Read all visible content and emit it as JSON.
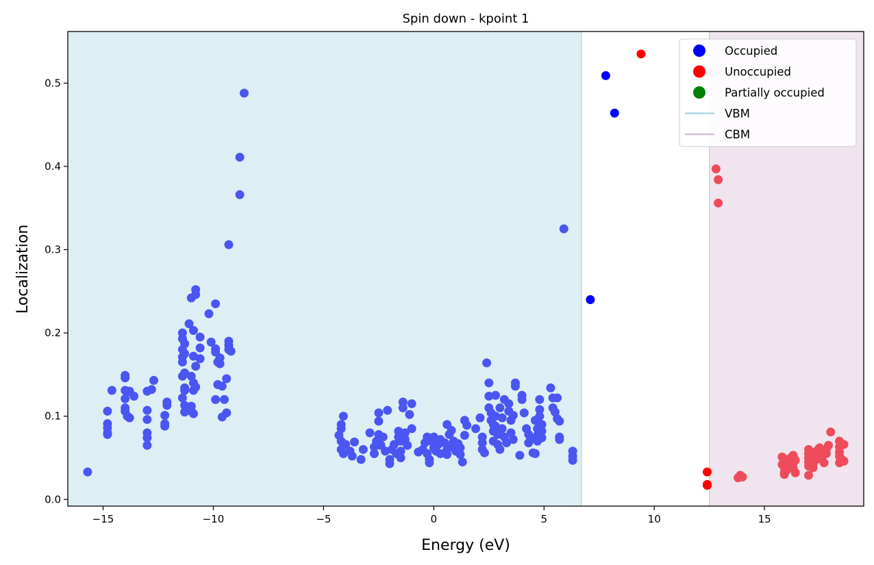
{
  "chart_data": {
    "type": "scatter",
    "title": "Spin down - kpoint 1",
    "xlabel": "Energy (eV)",
    "ylabel": "Localization",
    "xlim": [
      -16.6,
      19.5
    ],
    "ylim": [
      -0.008,
      0.562
    ],
    "x_ticks": [
      -15,
      -10,
      -5,
      0,
      5,
      10,
      15
    ],
    "x_tick_labels": [
      "−15",
      "−10",
      "−5",
      "0",
      "5",
      "10",
      "15"
    ],
    "y_ticks": [
      0.0,
      0.1,
      0.2,
      0.3,
      0.4,
      0.5
    ],
    "y_tick_labels": [
      "0.0",
      "0.1",
      "0.2",
      "0.3",
      "0.4",
      "0.5"
    ],
    "grid": false,
    "legend_position": "top-right",
    "regions": [
      {
        "name": "VBM",
        "from": -16.6,
        "to": 6.7,
        "fill": "#ddeef5",
        "edge": "#add8e6"
      },
      {
        "name": "CBM",
        "from": 12.5,
        "to": 19.5,
        "fill": "#f0e4ee",
        "edge": "#d8bfd8"
      }
    ],
    "legend": [
      {
        "label": "Occupied",
        "kind": "marker",
        "color": "#0000ff"
      },
      {
        "label": "Unoccupied",
        "kind": "marker",
        "color": "#ff0000"
      },
      {
        "label": "Partially occupied",
        "kind": "marker",
        "color": "#008000"
      },
      {
        "label": "VBM",
        "kind": "line",
        "color": "#add8e6"
      },
      {
        "label": "CBM",
        "kind": "line",
        "color": "#d8bfd8"
      }
    ],
    "series": [
      {
        "name": "Occupied",
        "color": "#4b55f2",
        "points": [
          [
            -15.7,
            0.033
          ],
          [
            -14.8,
            0.106
          ],
          [
            -14.8,
            0.091
          ],
          [
            -14.8,
            0.086
          ],
          [
            -14.8,
            0.08
          ],
          [
            -14.8,
            0.078
          ],
          [
            -14.6,
            0.131
          ],
          [
            -14.0,
            0.149
          ],
          [
            -14.0,
            0.146
          ],
          [
            -14.0,
            0.131
          ],
          [
            -13.9,
            0.129
          ],
          [
            -14.0,
            0.121
          ],
          [
            -14.0,
            0.11
          ],
          [
            -14.0,
            0.106
          ],
          [
            -13.9,
            0.1
          ],
          [
            -13.8,
            0.098
          ],
          [
            -13.8,
            0.13
          ],
          [
            -13.6,
            0.124
          ],
          [
            -13.0,
            0.13
          ],
          [
            -13.0,
            0.107
          ],
          [
            -13.0,
            0.096
          ],
          [
            -13.0,
            0.08
          ],
          [
            -13.0,
            0.074
          ],
          [
            -13.0,
            0.065
          ],
          [
            -12.8,
            0.132
          ],
          [
            -12.7,
            0.143
          ],
          [
            -12.1,
            0.117
          ],
          [
            -12.1,
            0.113
          ],
          [
            -12.2,
            0.101
          ],
          [
            -12.2,
            0.091
          ],
          [
            -12.2,
            0.088
          ],
          [
            -11.4,
            0.2
          ],
          [
            -11.4,
            0.193
          ],
          [
            -11.3,
            0.187
          ],
          [
            -11.4,
            0.18
          ],
          [
            -11.3,
            0.175
          ],
          [
            -11.4,
            0.171
          ],
          [
            -11.4,
            0.165
          ],
          [
            -11.3,
            0.152
          ],
          [
            -11.4,
            0.148
          ],
          [
            -11.3,
            0.134
          ],
          [
            -11.3,
            0.131
          ],
          [
            -11.4,
            0.122
          ],
          [
            -11.3,
            0.113
          ],
          [
            -11.3,
            0.105
          ],
          [
            -11.1,
            0.211
          ],
          [
            -11.0,
            0.242
          ],
          [
            -10.9,
            0.203
          ],
          [
            -10.9,
            0.172
          ],
          [
            -10.8,
            0.16
          ],
          [
            -11.0,
            0.148
          ],
          [
            -10.9,
            0.14
          ],
          [
            -10.8,
            0.135
          ],
          [
            -10.9,
            0.131
          ],
          [
            -11.0,
            0.112
          ],
          [
            -11.0,
            0.106
          ],
          [
            -10.9,
            0.103
          ],
          [
            -10.8,
            0.252
          ],
          [
            -10.8,
            0.246
          ],
          [
            -10.6,
            0.195
          ],
          [
            -10.6,
            0.182
          ],
          [
            -10.6,
            0.169
          ],
          [
            -10.2,
            0.223
          ],
          [
            -10.1,
            0.189
          ],
          [
            -9.9,
            0.235
          ],
          [
            -9.9,
            0.181
          ],
          [
            -9.9,
            0.177
          ],
          [
            -9.8,
            0.165
          ],
          [
            -9.7,
            0.163
          ],
          [
            -9.7,
            0.17
          ],
          [
            -9.8,
            0.138
          ],
          [
            -9.9,
            0.12
          ],
          [
            -9.6,
            0.136
          ],
          [
            -9.5,
            0.12
          ],
          [
            -9.6,
            0.099
          ],
          [
            -9.4,
            0.145
          ],
          [
            -9.4,
            0.104
          ],
          [
            -9.3,
            0.19
          ],
          [
            -9.3,
            0.185
          ],
          [
            -9.3,
            0.18
          ],
          [
            -9.2,
            0.178
          ],
          [
            -9.3,
            0.306
          ],
          [
            -8.8,
            0.366
          ],
          [
            -8.8,
            0.411
          ],
          [
            -8.6,
            0.488
          ],
          [
            -4.3,
            0.077
          ],
          [
            -4.2,
            0.09
          ],
          [
            -4.2,
            0.085
          ],
          [
            -4.2,
            0.07
          ],
          [
            -4.2,
            0.06
          ],
          [
            -4.1,
            0.1
          ],
          [
            -4.1,
            0.055
          ],
          [
            -4.0,
            0.066
          ],
          [
            -3.8,
            0.058
          ],
          [
            -3.7,
            0.052
          ],
          [
            -3.6,
            0.069
          ],
          [
            -3.3,
            0.048
          ],
          [
            -3.2,
            0.06
          ],
          [
            -2.9,
            0.08
          ],
          [
            -2.7,
            0.055
          ],
          [
            -2.7,
            0.063
          ],
          [
            -2.6,
            0.07
          ],
          [
            -2.5,
            0.104
          ],
          [
            -2.5,
            0.094
          ],
          [
            -2.5,
            0.078
          ],
          [
            -2.4,
            0.065
          ],
          [
            -2.3,
            0.075
          ],
          [
            -2.2,
            0.058
          ],
          [
            -2.1,
            0.107
          ],
          [
            -2.0,
            0.048
          ],
          [
            -2.0,
            0.043
          ],
          [
            -1.9,
            0.06
          ],
          [
            -1.8,
            0.066
          ],
          [
            -1.7,
            0.055
          ],
          [
            -1.6,
            0.082
          ],
          [
            -1.6,
            0.075
          ],
          [
            -1.5,
            0.07
          ],
          [
            -1.5,
            0.058
          ],
          [
            -1.5,
            0.05
          ],
          [
            -1.4,
            0.117
          ],
          [
            -1.4,
            0.11
          ],
          [
            -1.3,
            0.08
          ],
          [
            -1.3,
            0.072
          ],
          [
            -1.2,
            0.065
          ],
          [
            -1.1,
            0.102
          ],
          [
            -1.0,
            0.115
          ],
          [
            -1.0,
            0.085
          ],
          [
            -0.7,
            0.057
          ],
          [
            -0.5,
            0.06
          ],
          [
            -0.4,
            0.068
          ],
          [
            -0.3,
            0.075
          ],
          [
            -0.3,
            0.055
          ],
          [
            -0.2,
            0.048
          ],
          [
            -0.2,
            0.044
          ],
          [
            -0.1,
            0.07
          ],
          [
            0.0,
            0.075
          ],
          [
            0.0,
            0.062
          ],
          [
            0.1,
            0.058
          ],
          [
            0.2,
            0.066
          ],
          [
            0.3,
            0.072
          ],
          [
            0.3,
            0.055
          ],
          [
            0.5,
            0.068
          ],
          [
            0.6,
            0.09
          ],
          [
            0.6,
            0.06
          ],
          [
            0.6,
            0.054
          ],
          [
            0.7,
            0.078
          ],
          [
            0.8,
            0.083
          ],
          [
            0.8,
            0.064
          ],
          [
            0.9,
            0.07
          ],
          [
            1.0,
            0.058
          ],
          [
            1.1,
            0.067
          ],
          [
            1.2,
            0.062
          ],
          [
            1.2,
            0.054
          ],
          [
            1.3,
            0.045
          ],
          [
            1.4,
            0.077
          ],
          [
            1.4,
            0.095
          ],
          [
            1.5,
            0.089
          ],
          [
            1.9,
            0.085
          ],
          [
            2.1,
            0.098
          ],
          [
            2.2,
            0.075
          ],
          [
            2.2,
            0.068
          ],
          [
            2.2,
            0.06
          ],
          [
            2.3,
            0.056
          ],
          [
            2.4,
            0.164
          ],
          [
            2.5,
            0.14
          ],
          [
            2.5,
            0.124
          ],
          [
            2.5,
            0.11
          ],
          [
            2.6,
            0.104
          ],
          [
            2.6,
            0.095
          ],
          [
            2.7,
            0.09
          ],
          [
            2.7,
            0.082
          ],
          [
            2.7,
            0.07
          ],
          [
            2.8,
            0.125
          ],
          [
            2.8,
            0.1
          ],
          [
            2.8,
            0.088
          ],
          [
            2.9,
            0.078
          ],
          [
            2.9,
            0.066
          ],
          [
            3.0,
            0.06
          ],
          [
            3.0,
            0.11
          ],
          [
            3.1,
            0.098
          ],
          [
            3.1,
            0.085
          ],
          [
            3.2,
            0.12
          ],
          [
            3.2,
            0.075
          ],
          [
            3.3,
            0.068
          ],
          [
            3.4,
            0.115
          ],
          [
            3.4,
            0.106
          ],
          [
            3.5,
            0.095
          ],
          [
            3.5,
            0.08
          ],
          [
            3.6,
            0.072
          ],
          [
            3.6,
            0.101
          ],
          [
            3.7,
            0.14
          ],
          [
            3.7,
            0.136
          ],
          [
            3.9,
            0.053
          ],
          [
            4.0,
            0.125
          ],
          [
            4.0,
            0.12
          ],
          [
            4.1,
            0.104
          ],
          [
            4.2,
            0.085
          ],
          [
            4.3,
            0.078
          ],
          [
            4.3,
            0.068
          ],
          [
            4.4,
            0.073
          ],
          [
            4.5,
            0.056
          ],
          [
            4.6,
            0.055
          ],
          [
            4.6,
            0.095
          ],
          [
            4.7,
            0.085
          ],
          [
            4.7,
            0.077
          ],
          [
            4.7,
            0.07
          ],
          [
            4.8,
            0.12
          ],
          [
            4.8,
            0.108
          ],
          [
            4.8,
            0.1
          ],
          [
            4.9,
            0.09
          ],
          [
            4.9,
            0.082
          ],
          [
            4.9,
            0.074
          ],
          [
            5.3,
            0.134
          ],
          [
            5.4,
            0.122
          ],
          [
            5.4,
            0.11
          ],
          [
            5.5,
            0.105
          ],
          [
            5.6,
            0.122
          ],
          [
            5.6,
            0.097
          ],
          [
            5.7,
            0.094
          ],
          [
            5.7,
            0.075
          ],
          [
            5.7,
            0.072
          ],
          [
            6.3,
            0.058
          ],
          [
            6.3,
            0.052
          ],
          [
            6.3,
            0.047
          ],
          [
            5.9,
            0.325
          ]
        ]
      },
      {
        "name": "Occupied (outside region)",
        "color": "#0000ff",
        "points": [
          [
            7.1,
            0.24
          ],
          [
            7.8,
            0.509
          ],
          [
            8.2,
            0.464
          ]
        ]
      },
      {
        "name": "Unoccupied",
        "color": "#ff0000",
        "points": [
          [
            9.4,
            0.535
          ],
          [
            12.4,
            0.033
          ],
          [
            12.4,
            0.018
          ],
          [
            12.4,
            0.017
          ]
        ]
      },
      {
        "name": "Unoccupied (CBM region)",
        "color": "#ee4c5c",
        "points": [
          [
            12.8,
            0.397
          ],
          [
            12.9,
            0.384
          ],
          [
            12.9,
            0.356
          ],
          [
            13.8,
            0.026
          ],
          [
            13.9,
            0.029
          ],
          [
            14.0,
            0.027
          ],
          [
            15.8,
            0.051
          ],
          [
            15.8,
            0.042
          ],
          [
            15.9,
            0.038
          ],
          [
            15.9,
            0.032
          ],
          [
            15.9,
            0.03
          ],
          [
            16.0,
            0.048
          ],
          [
            16.0,
            0.035
          ],
          [
            16.1,
            0.045
          ],
          [
            16.2,
            0.04
          ],
          [
            16.2,
            0.05
          ],
          [
            16.3,
            0.053
          ],
          [
            16.3,
            0.044
          ],
          [
            16.3,
            0.038
          ],
          [
            16.4,
            0.032
          ],
          [
            16.4,
            0.047
          ],
          [
            17.0,
            0.06
          ],
          [
            17.0,
            0.055
          ],
          [
            17.0,
            0.05
          ],
          [
            17.0,
            0.045
          ],
          [
            17.0,
            0.04
          ],
          [
            17.0,
            0.029
          ],
          [
            17.1,
            0.057
          ],
          [
            17.1,
            0.048
          ],
          [
            17.2,
            0.042
          ],
          [
            17.2,
            0.038
          ],
          [
            17.3,
            0.053
          ],
          [
            17.3,
            0.047
          ],
          [
            17.4,
            0.059
          ],
          [
            17.4,
            0.05
          ],
          [
            17.5,
            0.062
          ],
          [
            17.5,
            0.055
          ],
          [
            17.6,
            0.048
          ],
          [
            17.7,
            0.044
          ],
          [
            17.8,
            0.06
          ],
          [
            17.8,
            0.055
          ],
          [
            17.9,
            0.065
          ],
          [
            18.0,
            0.081
          ],
          [
            18.4,
            0.07
          ],
          [
            18.4,
            0.063
          ],
          [
            18.4,
            0.057
          ],
          [
            18.4,
            0.052
          ],
          [
            18.4,
            0.044
          ],
          [
            18.5,
            0.048
          ],
          [
            18.6,
            0.066
          ],
          [
            18.6,
            0.046
          ]
        ]
      }
    ]
  }
}
